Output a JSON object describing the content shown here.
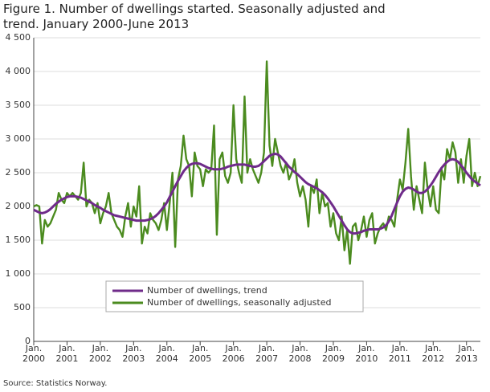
{
  "chart_data": {
    "type": "line",
    "title": "Figure 1. Number of dwellings started. Seasonally adjusted and trend. January 2000-June 2013",
    "source": "Source: Statistics Norway.",
    "categories": [
      "Jan. 2000",
      null,
      null,
      null,
      null,
      null,
      null,
      null,
      null,
      null,
      null,
      null,
      "Jan. 2001",
      null,
      null,
      null,
      null,
      null,
      null,
      null,
      null,
      null,
      null,
      null,
      "Jan. 2002",
      null,
      null,
      null,
      null,
      null,
      null,
      null,
      null,
      null,
      null,
      null,
      "Jan. 2003",
      null,
      null,
      null,
      null,
      null,
      null,
      null,
      null,
      null,
      null,
      null,
      "Jan. 2004",
      null,
      null,
      null,
      null,
      null,
      null,
      null,
      null,
      null,
      null,
      null,
      "Jan. 2005",
      null,
      null,
      null,
      null,
      null,
      null,
      null,
      null,
      null,
      null,
      null,
      "Jan. 2006",
      null,
      null,
      null,
      null,
      null,
      null,
      null,
      null,
      null,
      null,
      null,
      "Jan. 2007",
      null,
      null,
      null,
      null,
      null,
      null,
      null,
      null,
      null,
      null,
      null,
      "Jan. 2008",
      null,
      null,
      null,
      null,
      null,
      null,
      null,
      null,
      null,
      null,
      null,
      "Jan. 2009",
      null,
      null,
      null,
      null,
      null,
      null,
      null,
      null,
      null,
      null,
      null,
      "Jan. 2010",
      null,
      null,
      null,
      null,
      null,
      null,
      null,
      null,
      null,
      null,
      null,
      "Jan. 2011",
      null,
      null,
      null,
      null,
      null,
      null,
      null,
      null,
      null,
      null,
      null,
      "Jan. 2012",
      null,
      null,
      null,
      null,
      null,
      null,
      null,
      null,
      null,
      null,
      null,
      "Jan. 2013",
      null,
      null,
      null,
      null,
      null
    ],
    "series": [
      {
        "name": "Number of dwellings, trend",
        "color": "#6f2b8a",
        "values": [
          1950,
          1930,
          1910,
          1900,
          1910,
          1930,
          1960,
          2000,
          2040,
          2070,
          2100,
          2120,
          2140,
          2150,
          2150,
          2150,
          2140,
          2130,
          2110,
          2090,
          2070,
          2050,
          2020,
          2000,
          1980,
          1950,
          1930,
          1910,
          1890,
          1870,
          1860,
          1850,
          1840,
          1830,
          1820,
          1810,
          1800,
          1790,
          1790,
          1790,
          1790,
          1800,
          1810,
          1830,
          1860,
          1900,
          1950,
          2000,
          2060,
          2140,
          2220,
          2300,
          2380,
          2450,
          2520,
          2570,
          2610,
          2630,
          2640,
          2640,
          2630,
          2610,
          2590,
          2570,
          2560,
          2550,
          2550,
          2550,
          2560,
          2570,
          2590,
          2600,
          2610,
          2620,
          2620,
          2620,
          2620,
          2610,
          2600,
          2590,
          2590,
          2600,
          2630,
          2670,
          2710,
          2750,
          2770,
          2780,
          2770,
          2740,
          2690,
          2640,
          2590,
          2550,
          2510,
          2480,
          2440,
          2400,
          2360,
          2330,
          2310,
          2290,
          2270,
          2240,
          2210,
          2170,
          2120,
          2060,
          2000,
          1930,
          1860,
          1790,
          1720,
          1660,
          1620,
          1600,
          1600,
          1610,
          1620,
          1640,
          1650,
          1660,
          1660,
          1660,
          1660,
          1670,
          1690,
          1720,
          1780,
          1860,
          1960,
          2060,
          2150,
          2220,
          2260,
          2280,
          2270,
          2250,
          2220,
          2200,
          2200,
          2220,
          2260,
          2310,
          2370,
          2440,
          2510,
          2570,
          2620,
          2660,
          2690,
          2700,
          2690,
          2660,
          2610,
          2560,
          2500,
          2450,
          2400,
          2370,
          2340,
          2310
        ]
      },
      {
        "name": "Number of dwellings, seasonally adjusted",
        "color": "#4b8b1f",
        "values": [
          2000,
          2020,
          2000,
          1450,
          1800,
          1700,
          1750,
          1850,
          1950,
          2200,
          2100,
          2050,
          2200,
          2150,
          2200,
          2150,
          2100,
          2200,
          2650,
          2000,
          2100,
          2050,
          1900,
          2050,
          1750,
          1900,
          2000,
          2200,
          1900,
          1800,
          1700,
          1650,
          1550,
          1850,
          2050,
          1700,
          2000,
          1850,
          2300,
          1450,
          1700,
          1600,
          1900,
          1800,
          1750,
          1650,
          1800,
          2050,
          1650,
          2050,
          2500,
          1400,
          2400,
          2600,
          3050,
          2700,
          2600,
          2150,
          2800,
          2600,
          2550,
          2300,
          2550,
          2500,
          2550,
          3200,
          1580,
          2700,
          2800,
          2450,
          2350,
          2500,
          3500,
          2700,
          2500,
          2350,
          3630,
          2500,
          2700,
          2550,
          2450,
          2350,
          2500,
          2800,
          4150,
          2900,
          2600,
          3000,
          2800,
          2600,
          2500,
          2650,
          2400,
          2500,
          2700,
          2350,
          2150,
          2300,
          2100,
          1700,
          2300,
          2200,
          2400,
          1900,
          2200,
          2000,
          2050,
          1700,
          1900,
          1600,
          1500,
          1850,
          1350,
          1650,
          1150,
          1700,
          1750,
          1500,
          1650,
          1850,
          1550,
          1800,
          1900,
          1450,
          1600,
          1700,
          1750,
          1650,
          1850,
          1800,
          1700,
          2100,
          2400,
          2250,
          2650,
          3150,
          2450,
          1950,
          2300,
          2100,
          1900,
          2650,
          2250,
          2000,
          2300,
          1950,
          1900,
          2550,
          2400,
          2850,
          2700,
          2950,
          2800,
          2350,
          2700,
          2350,
          2750,
          3000,
          2300,
          2500,
          2300,
          2450
        ]
      }
    ],
    "ylim": [
      0,
      4500
    ],
    "yticks": [
      0,
      500,
      {
        "value": 1000,
        "label": "1 000"
      },
      {
        "value": 1500,
        "label": "1 500"
      },
      {
        "value": 2000,
        "label": "2 000"
      },
      {
        "value": 2500,
        "label": "2 500"
      },
      {
        "value": 3000,
        "label": "3 000"
      },
      {
        "value": 3500,
        "label": "3 500"
      },
      {
        "value": 4000,
        "label": "4 000"
      },
      {
        "value": 4500,
        "label": "4 500"
      }
    ],
    "grid": true
  }
}
